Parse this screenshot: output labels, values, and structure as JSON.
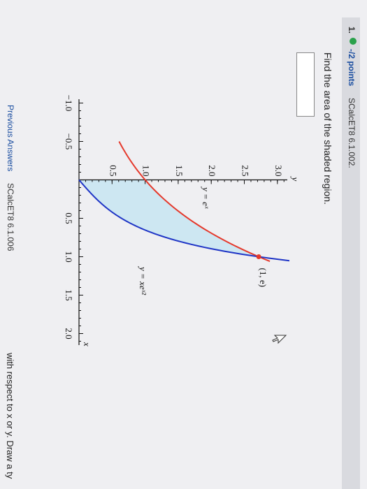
{
  "header": {
    "number": "1.",
    "points": "-/2 points",
    "source": "SCalcET8 6.1.002."
  },
  "question": "Find the area of the shaded region.",
  "chart_data": {
    "type": "area-between",
    "xlim": [
      -1.05,
      2.15
    ],
    "ylim": [
      0,
      3.15
    ],
    "xticks": [
      {
        "value": -1,
        "label": "−1.0"
      },
      {
        "value": -0.5,
        "label": "−0.5"
      },
      0.5,
      {
        "value": 1,
        "label": "1.0"
      },
      1.5,
      {
        "value": 2,
        "label": "2.0"
      }
    ],
    "yticks": [
      0.5,
      {
        "value": 1,
        "label": "1.0"
      },
      1.5,
      {
        "value": 2,
        "label": "2.0"
      },
      2.5,
      {
        "value": 3,
        "label": "3.0"
      }
    ],
    "x_label": "x",
    "y_label": "y",
    "curves": [
      {
        "label": "y = eˣ",
        "color": "#e5392c"
      },
      {
        "label": "y = xeˣ²",
        "color": "#1f35c6"
      }
    ],
    "shade_color": "#cde7f2",
    "point": {
      "x": 1,
      "y": 2.718,
      "label": "(1, e)"
    }
  },
  "footer": {
    "previous": "Previous Answers",
    "source": "SCalcET8 6.1.006",
    "instruction": "with respect to x or y. Draw a ty"
  }
}
